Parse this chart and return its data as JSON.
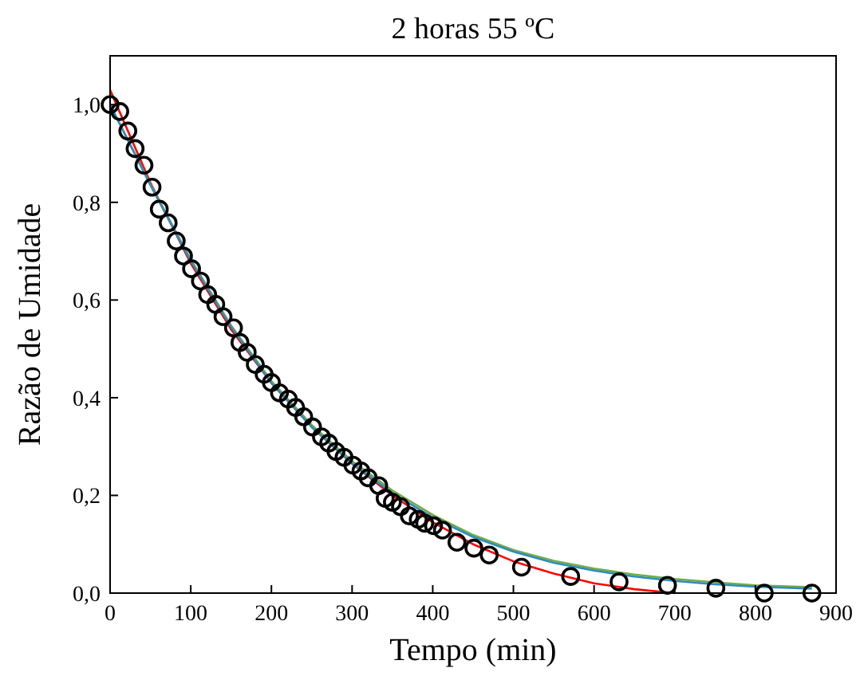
{
  "chart_data": {
    "type": "scatter",
    "title": "2 horas 55 ºC",
    "xlabel": "Tempo (min)",
    "ylabel": "Razão de Umidade",
    "xlim": [
      0,
      900
    ],
    "xticks": [
      0,
      100,
      200,
      300,
      400,
      500,
      600,
      700,
      800,
      900
    ],
    "ylim": [
      0,
      1.1
    ],
    "yticks": [
      {
        "value": 0,
        "label": "0,0"
      },
      {
        "value": 0.2,
        "label": "0,2"
      },
      {
        "value": 0.4,
        "label": "0,4"
      },
      {
        "value": 0.6,
        "label": "0,6"
      },
      {
        "value": 0.8,
        "label": "0,8"
      },
      {
        "value": 1,
        "label": "1,0"
      }
    ],
    "grid": false,
    "series": [
      {
        "type": "line",
        "color": "#ff0000",
        "line_style": "solid",
        "x": [
          0,
          50,
          100,
          150,
          200,
          250,
          300,
          350,
          400,
          450,
          500,
          550,
          600,
          650,
          700
        ],
        "values": [
          1.03,
          0.84,
          0.675,
          0.54,
          0.43,
          0.34,
          0.265,
          0.2,
          0.145,
          0.1,
          0.065,
          0.04,
          0.02,
          0.008,
          0.0
        ]
      },
      {
        "type": "line",
        "color": "#70ad47",
        "line_style": "solid",
        "x": [
          0,
          50,
          100,
          150,
          200,
          250,
          300,
          350,
          400,
          450,
          500,
          550,
          600,
          650,
          700,
          750,
          800,
          870
        ],
        "values": [
          1.0,
          0.837,
          0.683,
          0.548,
          0.434,
          0.344,
          0.27,
          0.21,
          0.16,
          0.119,
          0.088,
          0.066,
          0.05,
          0.038,
          0.029,
          0.022,
          0.016,
          0.012
        ]
      },
      {
        "type": "line",
        "color": "#2e8bc0",
        "line_style": "solid",
        "x": [
          0,
          50,
          100,
          150,
          200,
          250,
          300,
          350,
          400,
          450,
          500,
          550,
          600,
          650,
          700,
          750,
          800,
          870
        ],
        "values": [
          1.0,
          0.835,
          0.68,
          0.545,
          0.43,
          0.34,
          0.265,
          0.205,
          0.155,
          0.115,
          0.085,
          0.062,
          0.046,
          0.034,
          0.025,
          0.018,
          0.013,
          0.009
        ]
      },
      {
        "color": "#000000",
        "marker": "circle",
        "x": [
          0,
          12,
          22,
          31,
          42,
          52,
          61,
          72,
          82,
          91,
          101,
          112,
          121,
          131,
          140,
          153,
          161,
          170,
          180,
          191,
          200,
          210,
          221,
          230,
          240,
          251,
          262,
          271,
          280,
          290,
          301,
          311,
          320,
          333,
          341,
          350,
          360,
          371,
          382,
          390,
          401,
          412,
          430,
          451,
          470,
          510,
          571,
          631,
          691,
          751,
          811,
          870
        ],
        "values": [
          1.0,
          0.986,
          0.946,
          0.91,
          0.876,
          0.831,
          0.786,
          0.758,
          0.721,
          0.69,
          0.664,
          0.639,
          0.611,
          0.591,
          0.566,
          0.543,
          0.513,
          0.493,
          0.468,
          0.448,
          0.431,
          0.41,
          0.397,
          0.38,
          0.361,
          0.34,
          0.32,
          0.307,
          0.29,
          0.278,
          0.262,
          0.25,
          0.236,
          0.22,
          0.194,
          0.186,
          0.177,
          0.158,
          0.151,
          0.143,
          0.138,
          0.129,
          0.104,
          0.092,
          0.078,
          0.053,
          0.034,
          0.023,
          0.016,
          0.01,
          0.0,
          0.0
        ]
      }
    ]
  }
}
